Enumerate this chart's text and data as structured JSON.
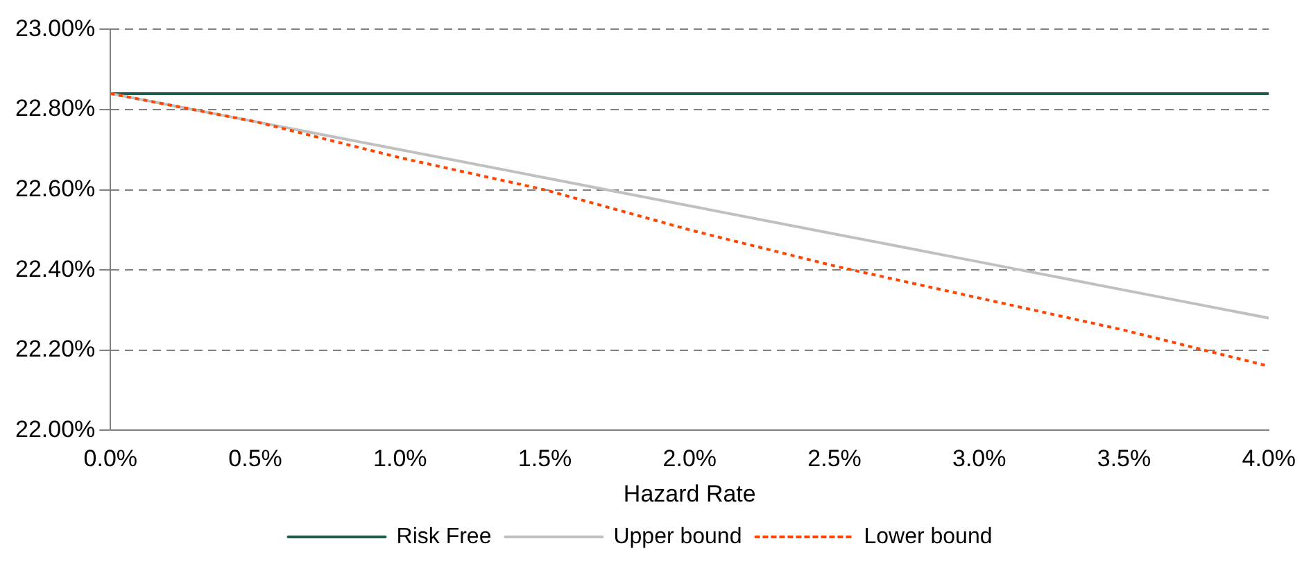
{
  "chart_data": {
    "type": "line",
    "xlabel": "Hazard Rate",
    "xlim": [
      0,
      4
    ],
    "xticks": [
      {
        "value": 0,
        "label": "0.0%"
      },
      {
        "value": 0.5,
        "label": "0.5%"
      },
      {
        "value": 1,
        "label": "1.0%"
      },
      {
        "value": 1.5,
        "label": "1.5%"
      },
      {
        "value": 2,
        "label": "2.0%"
      },
      {
        "value": 2.5,
        "label": "2.5%"
      },
      {
        "value": 3,
        "label": "3.0%"
      },
      {
        "value": 3.5,
        "label": "3.5%"
      },
      {
        "value": 4,
        "label": "4.0%"
      }
    ],
    "ylim": [
      22,
      23
    ],
    "yticks": [
      {
        "value": 22,
        "label": "22.00%"
      },
      {
        "value": 22.2,
        "label": "22.20%"
      },
      {
        "value": 22.4,
        "label": "22.40%"
      },
      {
        "value": 22.6,
        "label": "22.60%"
      },
      {
        "value": 22.8,
        "label": "22.80%"
      },
      {
        "value": 23,
        "label": "23.00%"
      }
    ],
    "grid": "y",
    "legend": "bottom",
    "marker": "none",
    "series": [
      {
        "name": "Risk Free",
        "color": "#1f5c4c",
        "line_style": "solid",
        "x": [
          0,
          4
        ],
        "values": [
          22.84,
          22.84
        ]
      },
      {
        "name": "Upper bound",
        "color": "#c0c0c0",
        "line_style": "solid",
        "x": [
          0,
          0.5,
          1,
          1.5,
          2,
          2.5,
          3,
          3.5,
          4
        ],
        "values": [
          22.84,
          22.77,
          22.7,
          22.63,
          22.56,
          22.49,
          22.42,
          22.35,
          22.28
        ]
      },
      {
        "name": "Lower bound",
        "color": "#ff4500",
        "line_style": "dotted",
        "x": [
          0,
          0.5,
          1,
          1.5,
          2,
          2.5,
          3,
          3.5,
          4
        ],
        "values": [
          22.84,
          22.77,
          22.68,
          22.6,
          22.5,
          22.41,
          22.33,
          22.25,
          22.16
        ]
      }
    ]
  }
}
